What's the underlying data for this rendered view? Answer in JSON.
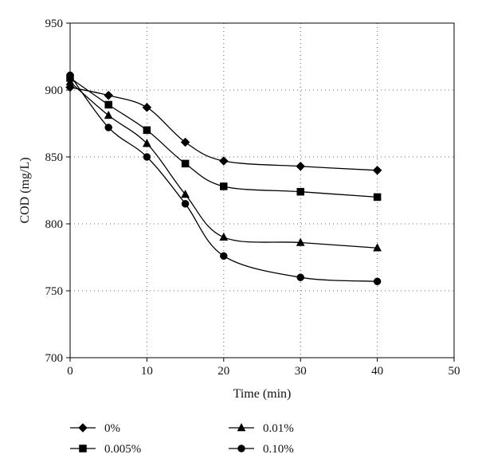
{
  "chart_data": {
    "type": "line",
    "title": "",
    "xlabel": "Time (min)",
    "ylabel": "COD (mg/L)",
    "xlim": [
      0,
      50
    ],
    "ylim": [
      700,
      950
    ],
    "xticks": [
      0,
      10,
      20,
      30,
      40,
      50
    ],
    "yticks": [
      700,
      750,
      800,
      850,
      900,
      950
    ],
    "x_tick_labels": [
      "0",
      "10",
      "20",
      "30",
      "40",
      "50"
    ],
    "y_tick_labels": [
      "700",
      "750",
      "800",
      "850",
      "900",
      "950"
    ],
    "grid": "dotted, major ticks",
    "legend_position": "bottom",
    "line_color": "#000000",
    "series": [
      {
        "name": "0%",
        "marker": "diamond",
        "x": [
          0,
          5,
          10,
          15,
          20,
          30,
          40
        ],
        "y": [
          902,
          896,
          887,
          861,
          847,
          843,
          840
        ]
      },
      {
        "name": "0.005%",
        "marker": "square",
        "x": [
          0,
          5,
          10,
          15,
          20,
          30,
          40
        ],
        "y": [
          909,
          889,
          870,
          845,
          828,
          824,
          820
        ]
      },
      {
        "name": "0.01%",
        "marker": "triangle",
        "x": [
          0,
          5,
          10,
          15,
          20,
          30,
          40
        ],
        "y": [
          906,
          881,
          860,
          822,
          790,
          786,
          782
        ]
      },
      {
        "name": "0.10%",
        "marker": "circle",
        "x": [
          0,
          5,
          10,
          15,
          20,
          30,
          40
        ],
        "y": [
          911,
          872,
          850,
          815,
          776,
          760,
          757
        ]
      }
    ]
  }
}
